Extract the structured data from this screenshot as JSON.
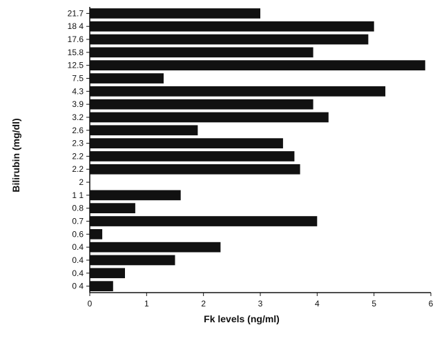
{
  "chart_data": {
    "type": "bar",
    "orientation": "horizontal",
    "xlabel": "Fk levels (ng/ml)",
    "ylabel": "Bilirubin (mg/dl)",
    "xlim": [
      0,
      6
    ],
    "x_ticks": [
      "0",
      "1",
      "2",
      "3",
      "4",
      "5",
      "6"
    ],
    "grid": false,
    "bar_color": "#111111",
    "categories": [
      "21.7",
      "18 4",
      "17.6",
      "15.8",
      "12.5",
      "7.5",
      "4.3",
      "3.9",
      "3.2",
      "2.6",
      "2.3",
      "2.2",
      "2.2",
      "2",
      "1 1",
      "0.8",
      "0.7",
      "0.6",
      "0.4",
      "0.4",
      "0.4",
      "0 4"
    ],
    "values": [
      3.0,
      5.0,
      4.9,
      3.93,
      5.9,
      1.3,
      5.2,
      3.93,
      4.2,
      1.9,
      3.4,
      3.6,
      3.7,
      0,
      1.6,
      0.8,
      4.0,
      0.22,
      2.3,
      1.5,
      0.62,
      0.41
    ]
  }
}
